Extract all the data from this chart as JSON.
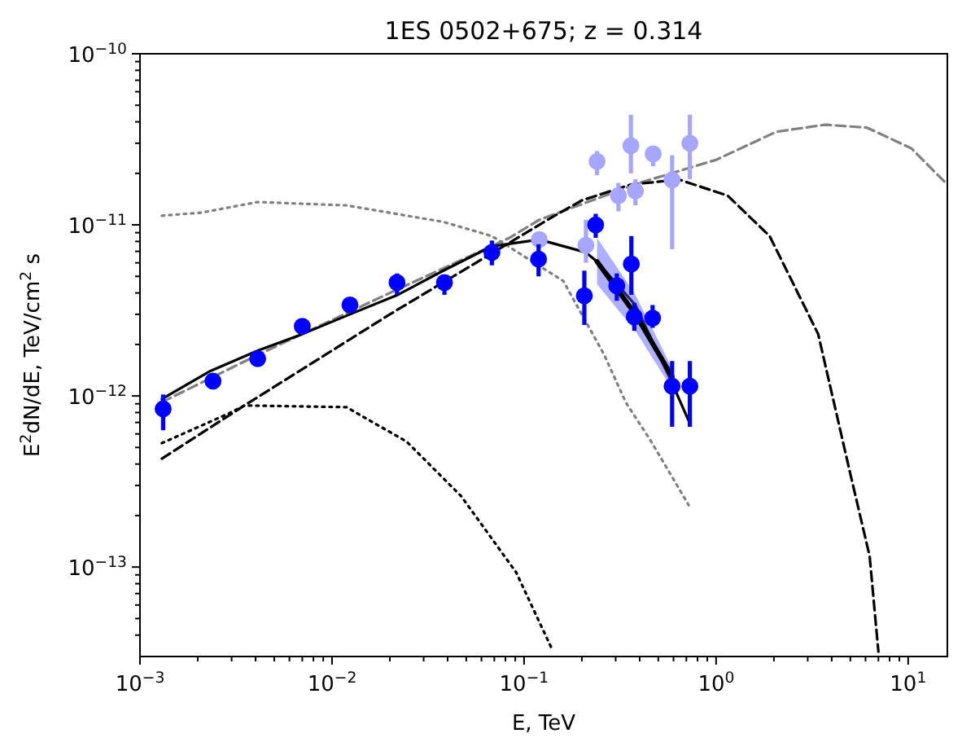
{
  "chart_data": {
    "type": "line",
    "title": "1ES 0502+675; z = 0.314",
    "xlabel": "E, TeV",
    "ylabel": "E$^{2}$dN/dE, TeV/cm$^{2}$ s",
    "log": "xy",
    "grid": false,
    "xlim": [
      0.001,
      16
    ],
    "ylim": [
      3e-14,
      1e-10
    ],
    "xticks": [
      {
        "value": 0.001,
        "label": "10$^{−3}$"
      },
      {
        "value": 0.002,
        "label": null
      },
      {
        "value": 0.003,
        "label": null
      },
      {
        "value": 0.004,
        "label": null
      },
      {
        "value": 0.005,
        "label": null
      },
      {
        "value": 0.006,
        "label": null
      },
      {
        "value": 0.007,
        "label": null
      },
      {
        "value": 0.008,
        "label": null
      },
      {
        "value": 0.009,
        "label": null
      },
      {
        "value": 0.01,
        "label": "10$^{−2}$"
      },
      {
        "value": 0.02,
        "label": null
      },
      {
        "value": 0.03,
        "label": null
      },
      {
        "value": 0.04,
        "label": null
      },
      {
        "value": 0.05,
        "label": null
      },
      {
        "value": 0.06,
        "label": null
      },
      {
        "value": 0.07,
        "label": null
      },
      {
        "value": 0.08,
        "label": null
      },
      {
        "value": 0.09,
        "label": null
      },
      {
        "value": 0.1,
        "label": "10$^{−1}$"
      },
      {
        "value": 0.2,
        "label": null
      },
      {
        "value": 0.3,
        "label": null
      },
      {
        "value": 0.4,
        "label": null
      },
      {
        "value": 0.5,
        "label": null
      },
      {
        "value": 0.6,
        "label": null
      },
      {
        "value": 0.7,
        "label": null
      },
      {
        "value": 0.8,
        "label": null
      },
      {
        "value": 0.9,
        "label": null
      },
      {
        "value": 1,
        "label": "10$^{0}$"
      },
      {
        "value": 2,
        "label": null
      },
      {
        "value": 3,
        "label": null
      },
      {
        "value": 4,
        "label": null
      },
      {
        "value": 5,
        "label": null
      },
      {
        "value": 6,
        "label": null
      },
      {
        "value": 7,
        "label": null
      },
      {
        "value": 8,
        "label": null
      },
      {
        "value": 9,
        "label": null
      },
      {
        "value": 10,
        "label": "10$^{1}$"
      }
    ],
    "yticks": [
      {
        "value": 4e-14,
        "label": null
      },
      {
        "value": 5e-14,
        "label": null
      },
      {
        "value": 6e-14,
        "label": null
      },
      {
        "value": 7e-14,
        "label": null
      },
      {
        "value": 8e-14,
        "label": null
      },
      {
        "value": 9e-14,
        "label": null
      },
      {
        "value": 1e-13,
        "label": "10$^{−13}$"
      },
      {
        "value": 2e-13,
        "label": null
      },
      {
        "value": 3e-13,
        "label": null
      },
      {
        "value": 4e-13,
        "label": null
      },
      {
        "value": 5e-13,
        "label": null
      },
      {
        "value": 6e-13,
        "label": null
      },
      {
        "value": 7e-13,
        "label": null
      },
      {
        "value": 8e-13,
        "label": null
      },
      {
        "value": 9e-13,
        "label": null
      },
      {
        "value": 1e-12,
        "label": "10$^{−12}$"
      },
      {
        "value": 2e-12,
        "label": null
      },
      {
        "value": 3e-12,
        "label": null
      },
      {
        "value": 4e-12,
        "label": null
      },
      {
        "value": 5e-12,
        "label": null
      },
      {
        "value": 6e-12,
        "label": null
      },
      {
        "value": 7e-12,
        "label": null
      },
      {
        "value": 8e-12,
        "label": null
      },
      {
        "value": 9e-12,
        "label": null
      },
      {
        "value": 1e-11,
        "label": "10$^{−11}$"
      },
      {
        "value": 2e-11,
        "label": null
      },
      {
        "value": 3e-11,
        "label": null
      },
      {
        "value": 4e-11,
        "label": null
      },
      {
        "value": 5e-11,
        "label": null
      },
      {
        "value": 6e-11,
        "label": null
      },
      {
        "value": 7e-11,
        "label": null
      },
      {
        "value": 8e-11,
        "label": null
      },
      {
        "value": 9e-11,
        "label": null
      },
      {
        "value": 1e-10,
        "label": "10$^{−10}$"
      }
    ],
    "series": [
      {
        "color": "#808080",
        "line_style": "dotted",
        "x": [
          0.0013,
          0.0021,
          0.0041,
          0.0119,
          0.038,
          0.068,
          0.16,
          0.26,
          0.34,
          0.46,
          0.72
        ],
        "values": [
          1.13e-11,
          1.18e-11,
          1.36e-11,
          1.3e-11,
          1.04e-11,
          8.6e-12,
          4.7e-12,
          1.76e-12,
          9.1e-13,
          5.4e-13,
          2.3e-13
        ]
      },
      {
        "color": "#000000",
        "line_style": "dotted",
        "x": [
          0.0013,
          0.0029,
          0.0035,
          0.0119,
          0.0245,
          0.047,
          0.091,
          0.14
        ],
        "values": [
          5.3e-13,
          7.9e-13,
          8.8e-13,
          8.6e-13,
          5.4e-13,
          2.6e-13,
          9.3e-14,
          3.3e-14
        ]
      },
      {
        "color": "#808080",
        "line_style": "dashed",
        "x": [
          0.0013,
          0.0042,
          0.02,
          0.084,
          0.12,
          0.4,
          1,
          2.06,
          3.7,
          6.1,
          10.4,
          16
        ],
        "values": [
          9.2e-13,
          1.76e-12,
          4e-12,
          8.4e-12,
          1.07e-11,
          1.76e-11,
          2.4e-11,
          3.5e-11,
          3.85e-11,
          3.7e-11,
          2.8e-11,
          1.72e-11
        ]
      },
      {
        "color": "#000000",
        "line_style": "dashed",
        "x": [
          0.0013,
          0.0035,
          0.02,
          0.14,
          0.2,
          0.36,
          0.64,
          1.15,
          1.9,
          3.4,
          5.0,
          6.3,
          7.0
        ],
        "values": [
          4.3e-13,
          8.8e-13,
          3e-12,
          1.11e-11,
          1.39e-11,
          1.72e-11,
          1.84e-11,
          1.48e-11,
          8.6e-12,
          2.3e-12,
          3.5e-13,
          1.16e-13,
          3.2e-14
        ]
      },
      {
        "color": "#000000",
        "line_style": "solid",
        "x": [
          0.0013,
          0.0023,
          0.0041,
          0.007,
          0.0124,
          0.022,
          0.038,
          0.068,
          0.12,
          0.21,
          0.24,
          0.31,
          0.38,
          0.59,
          0.73
        ],
        "values": [
          9.6e-13,
          1.39e-12,
          1.84e-12,
          2.3e-12,
          3e-12,
          3.9e-12,
          5.4e-12,
          7.5e-12,
          8.2e-12,
          6.9e-12,
          6.1e-12,
          4.4e-12,
          3.4e-12,
          1.19e-12,
          6.9e-13
        ]
      },
      {
        "color": "#000000",
        "line_style": "solid",
        "x": [
          0.24,
          0.38,
          0.59
        ],
        "values": [
          6.1e-12,
          3e-12,
          1.3e-12
        ],
        "lower": [
          4.5e-12,
          2.4e-12,
          1.1e-12
        ],
        "upper": [
          8.4e-12,
          3.9e-12,
          1.45e-12
        ]
      },
      {
        "type": "scatter",
        "color": "#a6a6ff",
        "marker": "circle",
        "x": [
          0.12,
          0.21,
          0.24,
          0.31,
          0.36,
          0.38,
          0.47,
          0.59,
          0.73
        ],
        "values": [
          8.2e-12,
          7.6e-12,
          2.35e-11,
          1.48e-11,
          2.9e-11,
          1.58e-11,
          2.6e-11,
          1.83e-11,
          3e-11
        ],
        "errors": [
          null,
          [
            6e-12,
            1.07e-11
          ],
          [
            1.95e-11,
            2.7e-11
          ],
          [
            1.2e-11,
            1.76e-11
          ],
          [
            2e-11,
            4.4e-11
          ],
          [
            1.3e-11,
            1.85e-11
          ],
          [
            2.2e-11,
            2.75e-11
          ],
          [
            7.2e-12,
            2.55e-11
          ],
          [
            1.85e-11,
            4.4e-11
          ]
        ]
      },
      {
        "type": "scatter",
        "color": "#0000ff",
        "marker": "circle",
        "x": [
          0.00132,
          0.0024,
          0.0041,
          0.007,
          0.0124,
          0.0218,
          0.0385,
          0.068,
          0.119,
          0.206,
          0.236,
          0.304,
          0.362,
          0.375,
          0.467,
          0.59,
          0.73
        ],
        "values": [
          8.4e-13,
          1.22e-12,
          1.65e-12,
          2.55e-12,
          3.4e-12,
          4.6e-12,
          4.6e-12,
          6.9e-12,
          6.3e-12,
          3.85e-12,
          1e-11,
          4.4e-12,
          5.9e-12,
          2.9e-12,
          2.85e-12,
          1.14e-12,
          1.14e-12
        ],
        "errors": [
          [
            6.3e-13,
            1.02e-12
          ],
          null,
          null,
          null,
          null,
          [
            3.9e-12,
            5.2e-12
          ],
          [
            3.9e-12,
            5e-12
          ],
          [
            5.8e-12,
            8.1e-12
          ],
          [
            5e-12,
            7.7e-12
          ],
          [
            2.6e-12,
            5.4e-12
          ],
          [
            8.4e-12,
            1.16e-11
          ],
          [
            3.6e-12,
            5.2e-12
          ],
          [
            3.9e-12,
            8.6e-12
          ],
          [
            2.4e-12,
            3.5e-12
          ],
          [
            2.5e-12,
            3.4e-12
          ],
          [
            6.6e-13,
            1.6e-12
          ],
          [
            6.6e-13,
            1.6e-12
          ]
        ]
      }
    ]
  }
}
